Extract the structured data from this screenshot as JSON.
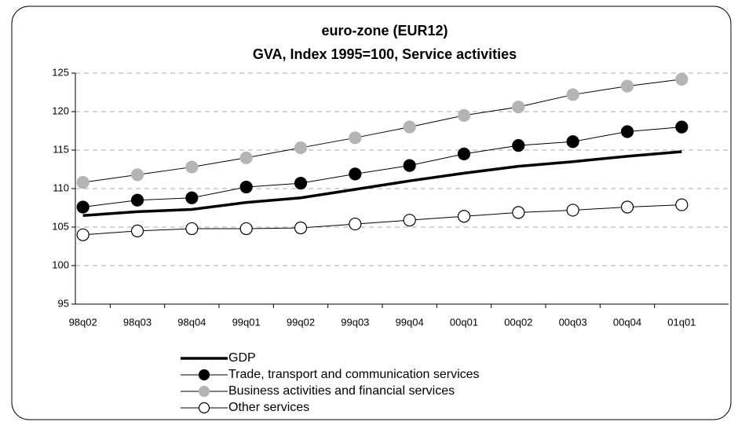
{
  "chart_data": {
    "type": "line",
    "title": "euro-zone (EUR12)",
    "subtitle": "GVA, Index 1995=100, Service activities",
    "categories": [
      "98q02",
      "98q03",
      "98q04",
      "99q01",
      "99q02",
      "99q03",
      "99q04",
      "00q01",
      "00q02",
      "00q03",
      "00q04",
      "01q01"
    ],
    "series": [
      {
        "name": "GDP",
        "color": "#000000",
        "markers": false,
        "values": [
          106.5,
          107.0,
          107.3,
          108.2,
          108.8,
          109.9,
          111.0,
          112.0,
          112.9,
          113.5,
          114.2,
          114.8
        ]
      },
      {
        "name": "Trade, transport and communication services",
        "color": "#000000",
        "markers": true,
        "values": [
          107.6,
          108.5,
          108.8,
          110.2,
          110.7,
          111.9,
          113.0,
          114.5,
          115.6,
          116.1,
          117.4,
          118.0
        ]
      },
      {
        "name": "Business activities and financial services",
        "color": "#b4b4b4",
        "markers": true,
        "values": [
          110.8,
          111.8,
          112.8,
          114.0,
          115.3,
          116.6,
          118.0,
          119.5,
          120.6,
          122.2,
          123.3,
          124.2
        ]
      },
      {
        "name": "Other services",
        "color": "#ffffff",
        "markers": true,
        "values": [
          104.0,
          104.5,
          104.8,
          104.8,
          104.9,
          105.4,
          105.9,
          106.4,
          106.9,
          107.2,
          107.6,
          107.9
        ]
      }
    ],
    "ylim": [
      95,
      125
    ],
    "yticks": [
      95,
      100,
      105,
      110,
      115,
      120,
      125
    ],
    "grid": true
  }
}
